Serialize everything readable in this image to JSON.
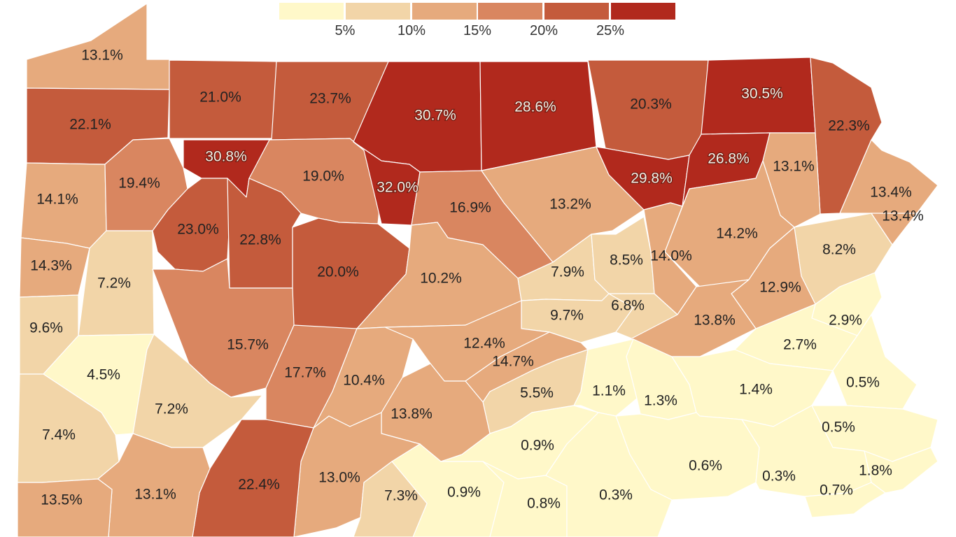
{
  "legend": {
    "colors": [
      "#fff8c9",
      "#f2d5a8",
      "#e6aa7d",
      "#d98660",
      "#c45b3c",
      "#b1291d"
    ],
    "ticks": [
      "5%",
      "10%",
      "15%",
      "20%",
      "25%"
    ]
  },
  "counties": [
    {
      "label": "13.1%",
      "value": 13.1
    },
    {
      "label": "22.1%",
      "value": 22.1
    },
    {
      "label": "21.0%",
      "value": 21.0
    },
    {
      "label": "23.7%",
      "value": 23.7
    },
    {
      "label": "30.7%",
      "value": 30.7
    },
    {
      "label": "28.6%",
      "value": 28.6
    },
    {
      "label": "20.3%",
      "value": 20.3
    },
    {
      "label": "30.5%",
      "value": 30.5
    },
    {
      "label": "22.3%",
      "value": 22.3
    },
    {
      "label": "14.1%",
      "value": 14.1
    },
    {
      "label": "19.4%",
      "value": 19.4
    },
    {
      "label": "30.8%",
      "value": 30.8
    },
    {
      "label": "19.0%",
      "value": 19.0
    },
    {
      "label": "32.0%",
      "value": 32.0
    },
    {
      "label": "16.9%",
      "value": 16.9
    },
    {
      "label": "13.2%",
      "value": 13.2
    },
    {
      "label": "29.8%",
      "value": 29.8
    },
    {
      "label": "26.8%",
      "value": 26.8
    },
    {
      "label": "13.1%",
      "value": 13.1
    },
    {
      "label": "13.4%",
      "value": 13.4
    },
    {
      "label": "23.0%",
      "value": 23.0
    },
    {
      "label": "22.8%",
      "value": 22.8
    },
    {
      "label": "14.2%",
      "value": 14.2
    },
    {
      "label": "14.3%",
      "value": 14.3
    },
    {
      "label": "7.2%",
      "value": 7.2
    },
    {
      "label": "20.0%",
      "value": 20.0
    },
    {
      "label": "10.2%",
      "value": 10.2
    },
    {
      "label": "7.9%",
      "value": 7.9
    },
    {
      "label": "8.5%",
      "value": 8.5
    },
    {
      "label": "14.0%",
      "value": 14.0
    },
    {
      "label": "8.2%",
      "value": 8.2
    },
    {
      "label": "13.4%",
      "value": 13.4
    },
    {
      "label": "12.9%",
      "value": 12.9
    },
    {
      "label": "9.6%",
      "value": 9.6
    },
    {
      "label": "9.7%",
      "value": 9.7
    },
    {
      "label": "6.8%",
      "value": 6.8
    },
    {
      "label": "13.8%",
      "value": 13.8
    },
    {
      "label": "2.9%",
      "value": 2.9
    },
    {
      "label": "15.7%",
      "value": 15.7
    },
    {
      "label": "12.4%",
      "value": 12.4
    },
    {
      "label": "2.7%",
      "value": 2.7
    },
    {
      "label": "4.5%",
      "value": 4.5
    },
    {
      "label": "17.7%",
      "value": 17.7
    },
    {
      "label": "10.4%",
      "value": 10.4
    },
    {
      "label": "14.7%",
      "value": 14.7
    },
    {
      "label": "0.5%",
      "value": 0.5
    },
    {
      "label": "5.5%",
      "value": 5.5
    },
    {
      "label": "1.1%",
      "value": 1.1
    },
    {
      "label": "1.3%",
      "value": 1.3
    },
    {
      "label": "1.4%",
      "value": 1.4
    },
    {
      "label": "7.2%",
      "value": 7.2
    },
    {
      "label": "13.8%",
      "value": 13.8
    },
    {
      "label": "7.4%",
      "value": 7.4
    },
    {
      "label": "0.5%",
      "value": 0.5
    },
    {
      "label": "0.9%",
      "value": 0.9
    },
    {
      "label": "0.6%",
      "value": 0.6
    },
    {
      "label": "13.0%",
      "value": 13.0
    },
    {
      "label": "1.8%",
      "value": 1.8
    },
    {
      "label": "0.3%",
      "value": 0.3
    },
    {
      "label": "22.4%",
      "value": 22.4
    },
    {
      "label": "13.1%",
      "value": 13.1
    },
    {
      "label": "0.7%",
      "value": 0.7
    },
    {
      "label": "0.9%",
      "value": 0.9
    },
    {
      "label": "7.3%",
      "value": 7.3
    },
    {
      "label": "13.5%",
      "value": 13.5
    },
    {
      "label": "0.8%",
      "value": 0.8
    },
    {
      "label": "0.3%",
      "value": 0.3
    }
  ]
}
